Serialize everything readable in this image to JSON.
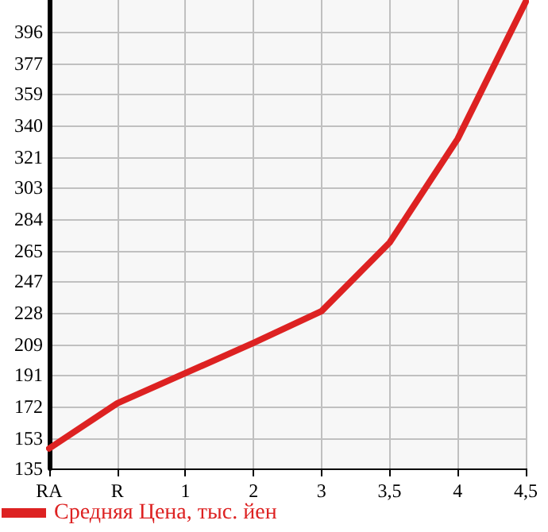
{
  "chart_data": {
    "type": "line",
    "categories": [
      "RA",
      "R",
      "1",
      "2",
      "3",
      "3,5",
      "4",
      "4,5"
    ],
    "series": [
      {
        "name": "Средняя Цена, тыс. йен",
        "color": "#dd2222",
        "values": [
          147,
          174,
          192,
          210,
          229,
          270,
          332,
          414
        ]
      }
    ],
    "ylim": [
      135,
      415
    ],
    "yticks": [
      135,
      153,
      172,
      191,
      209,
      228,
      247,
      265,
      284,
      303,
      321,
      340,
      359,
      377,
      396
    ],
    "grid": true,
    "legend": "bottom left",
    "marker": "none",
    "line_style": "solid"
  }
}
